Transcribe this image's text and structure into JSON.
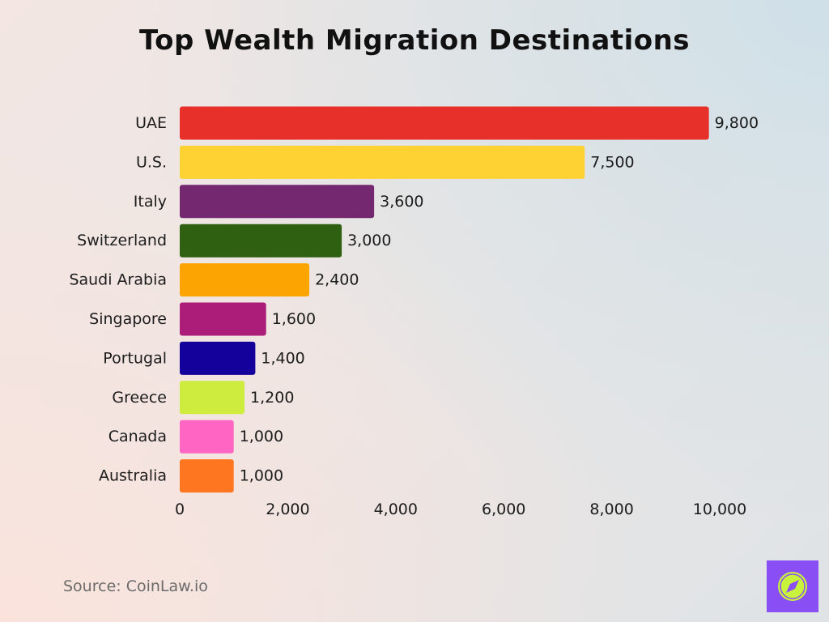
{
  "title": "Top Wealth Migration Destinations",
  "source": "Source: CoinLaw.io",
  "logo_icon": "compass-icon",
  "chart_data": {
    "type": "bar",
    "orientation": "horizontal",
    "title": "Top Wealth Migration Destinations",
    "xlabel": "",
    "ylabel": "",
    "categories": [
      "UAE",
      "U.S.",
      "Italy",
      "Switzerland",
      "Saudi Arabia",
      "Singapore",
      "Portugal",
      "Greece",
      "Canada",
      "Australia"
    ],
    "values": [
      9800,
      7500,
      3600,
      3000,
      2400,
      1600,
      1400,
      1200,
      1000,
      1000
    ],
    "value_labels": [
      "9,800",
      "7,500",
      "3,600",
      "3,000",
      "2,400",
      "1,600",
      "1,400",
      "1,200",
      "1,000",
      "1,000"
    ],
    "colors": [
      "#e8302a",
      "#ffd233",
      "#742870",
      "#2f5f10",
      "#fba402",
      "#ab1d79",
      "#14009b",
      "#cdec3e",
      "#ff66c4",
      "#ff7620"
    ],
    "xlim": [
      0,
      10000
    ],
    "xticks": [
      0,
      2000,
      4000,
      6000,
      8000,
      10000
    ],
    "xtick_labels": [
      "0",
      "2,000",
      "4,000",
      "6,000",
      "8,000",
      "10,000"
    ],
    "grid": false,
    "legend": "none"
  }
}
